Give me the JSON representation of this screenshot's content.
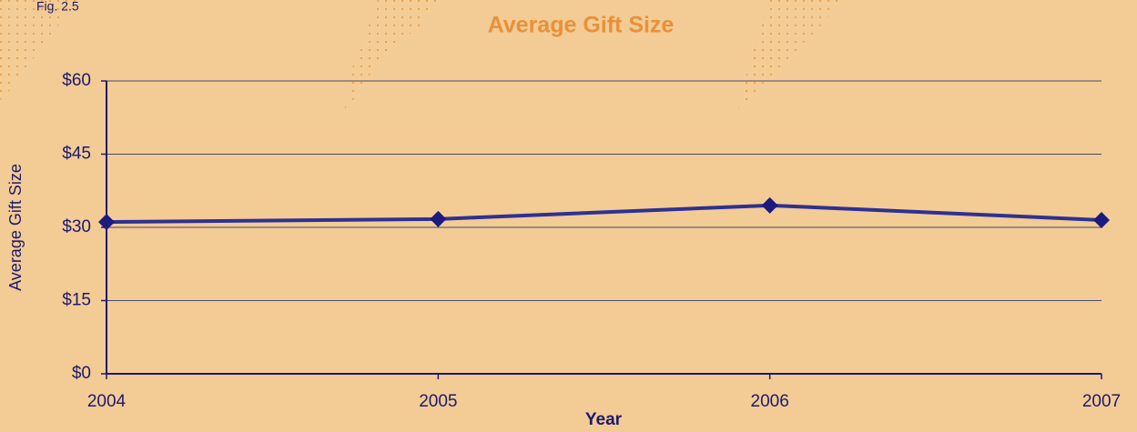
{
  "chart_data": {
    "type": "line",
    "title": "Average Gift Size",
    "figure_label": "Fig. 2.5",
    "x_label": "Year",
    "y_label": "Average Gift Size",
    "x": [
      2004,
      2005,
      2006,
      2007
    ],
    "values": [
      31.1,
      31.7,
      34.5,
      31.5
    ],
    "color": "#2e3192",
    "marker_color": "#1c1a7e",
    "xlim": [
      2004,
      2007
    ],
    "xticks": [
      2004,
      2005,
      2006,
      2007
    ],
    "ylim": [
      0,
      60
    ],
    "yticks": [
      {
        "value": 0,
        "label": "$0"
      },
      {
        "value": 15,
        "label": "$15"
      },
      {
        "value": 30,
        "label": "$30"
      },
      {
        "value": 45,
        "label": "$45"
      },
      {
        "value": 60,
        "label": "$60"
      }
    ],
    "grid": true
  }
}
